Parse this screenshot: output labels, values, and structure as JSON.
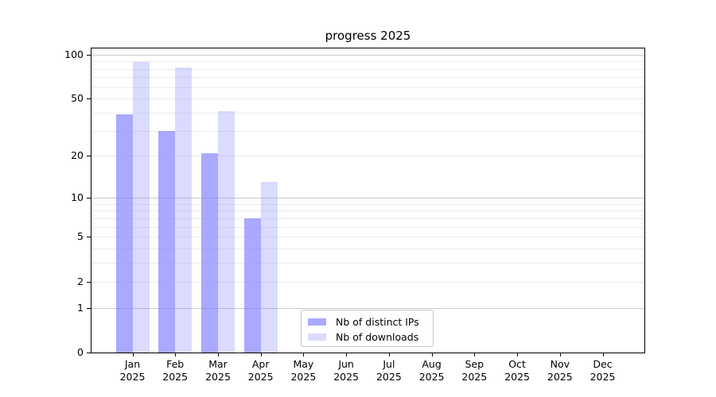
{
  "title": "progress 2025",
  "chart_data": {
    "type": "bar",
    "title": "progress 2025",
    "xlabel": "",
    "ylabel": "",
    "yscale": "log1p",
    "ylim": [
      0,
      110
    ],
    "grid": true,
    "legend_position": "lower center",
    "major_grid_color": "#c9c9c9",
    "minor_grid_color": "#ececec",
    "axis_color": "#000000",
    "categories": [
      "Jan 2025",
      "Feb 2025",
      "Mar 2025",
      "Apr 2025",
      "May 2025",
      "Jun 2025",
      "Jul 2025",
      "Aug 2025",
      "Sep 2025",
      "Oct 2025",
      "Nov 2025",
      "Dec 2025"
    ],
    "y_ticks": [
      100,
      50,
      20,
      10,
      5,
      2,
      1,
      0
    ],
    "major_gridlines": [
      1,
      10,
      100
    ],
    "minor_gridlines": [
      2,
      3,
      4,
      5,
      6,
      7,
      8,
      9,
      20,
      30,
      40,
      50,
      60,
      70,
      80,
      90
    ],
    "series": [
      {
        "name": "Nb of distinct IPs",
        "color": "#8888ff",
        "alpha": 0.72,
        "fill": "rgba(136,136,255,0.72)",
        "values": [
          39,
          30,
          21,
          7,
          0,
          0,
          0,
          0,
          0,
          0,
          0,
          0
        ]
      },
      {
        "name": "Nb of downloads",
        "color": "#8888ff",
        "alpha": 0.3,
        "fill": "rgba(136,136,255,0.30)",
        "values": [
          89,
          82,
          41,
          13,
          0,
          0,
          0,
          0,
          0,
          0,
          0,
          0
        ]
      }
    ]
  }
}
